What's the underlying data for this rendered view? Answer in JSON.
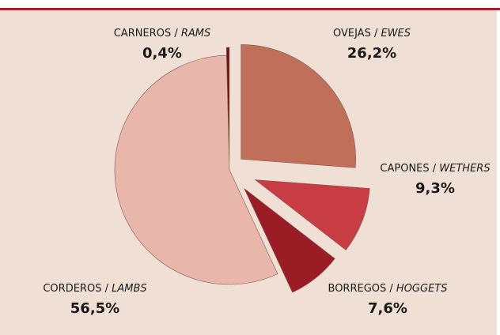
{
  "chart_data": {
    "type": "pie",
    "categories": [
      "OVEJAS",
      "CAPONES",
      "BORREGOS",
      "CORDEROS",
      "CARNEROS"
    ],
    "translations": [
      "EWES",
      "WETHERS",
      "HOGGETS",
      "LAMBS",
      "RAMS"
    ],
    "separator": " / ",
    "values": [
      26.2,
      9.3,
      7.6,
      56.5,
      0.4
    ],
    "value_labels": [
      "26,2%",
      "9,3%",
      "7,6%",
      "56,5%",
      "0,4%"
    ],
    "colors": [
      "#c0705a",
      "#c83c44",
      "#9a1c24",
      "#e8b6aa",
      "#6a0f15"
    ]
  }
}
